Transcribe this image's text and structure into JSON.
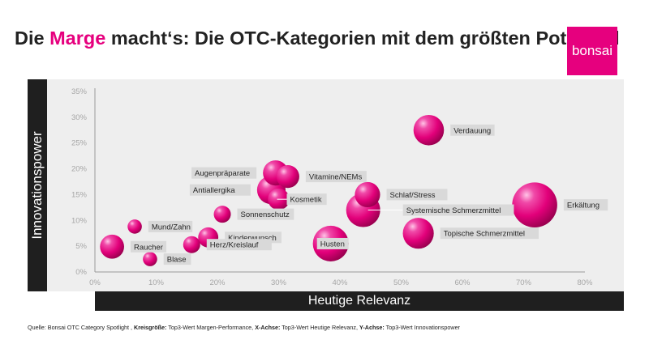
{
  "title": {
    "before": "Die ",
    "highlight": "Marge",
    "after": " macht‘s: Die OTC-Kategorien mit dem größten Potenzial"
  },
  "logo": {
    "text": "bonsai"
  },
  "colors": {
    "accent": "#e6007e",
    "axis_bar": "#1f1f1f",
    "plot_bg": "#eeeeee",
    "label_bg": "#d9d9d9"
  },
  "source": {
    "lead": "Quelle: Bonsai OTC Category Spotlight ,",
    "k1": "Kreisgröße:",
    "v1": " Top3-Wert Margen-Performance, ",
    "k2": "X-Achse:",
    "v2": " Top3-Wert Heutige Relevanz, ",
    "k3": "Y-Achse:",
    "v3": " Top3-Wert Innovationspower"
  },
  "chart_data": {
    "type": "scatter",
    "title": "Die Marge macht‘s: Die OTC-Kategorien mit dem größten Potenzial",
    "xlabel": "Heutige Relevanz",
    "ylabel": "Innovationspower",
    "size_label": "Top3-Wert Margen-Performance",
    "xlim": [
      0,
      80
    ],
    "ylim": [
      0,
      35
    ],
    "x_ticks": [
      0,
      10,
      20,
      30,
      40,
      50,
      60,
      70,
      80
    ],
    "y_ticks": [
      0,
      5,
      10,
      15,
      20,
      25,
      30,
      35
    ],
    "tick_suffix": "%",
    "points": [
      {
        "name": "Verdauung",
        "x": 54.5,
        "y": 27.5,
        "size": 3.2
      },
      {
        "name": "Augenpräparate",
        "x": 29.5,
        "y": 19.2,
        "size": 2.2
      },
      {
        "name": "Vitamine/NEMs",
        "x": 31.5,
        "y": 18.5,
        "size": 1.8
      },
      {
        "name": "Antiallergika",
        "x": 28.8,
        "y": 15.9,
        "size": 2.8
      },
      {
        "name": "Kosmetik",
        "x": 30.0,
        "y": 14.1,
        "size": 1.6
      },
      {
        "name": "Schlaf/Stress",
        "x": 44.5,
        "y": 15.0,
        "size": 2.2
      },
      {
        "name": "Systemische Schmerzmittel",
        "x": 43.8,
        "y": 12.0,
        "size": 4.0
      },
      {
        "name": "Erkältung",
        "x": 71.8,
        "y": 13.0,
        "size": 7.0
      },
      {
        "name": "Sonnenschutz",
        "x": 20.8,
        "y": 11.2,
        "size": 1.0
      },
      {
        "name": "Mund/Zahn",
        "x": 6.5,
        "y": 8.8,
        "size": 0.7
      },
      {
        "name": "Topische Schmerzmittel",
        "x": 52.8,
        "y": 7.5,
        "size": 3.3
      },
      {
        "name": "Kinderwunsch",
        "x": 18.5,
        "y": 6.7,
        "size": 1.4
      },
      {
        "name": "Husten",
        "x": 38.5,
        "y": 5.5,
        "size": 4.4
      },
      {
        "name": "Raucher",
        "x": 2.8,
        "y": 4.9,
        "size": 2.0
      },
      {
        "name": "Herz/Kreislauf",
        "x": 15.8,
        "y": 5.3,
        "size": 1.0
      },
      {
        "name": "Blase",
        "x": 9.0,
        "y": 2.5,
        "size": 0.7
      }
    ]
  }
}
